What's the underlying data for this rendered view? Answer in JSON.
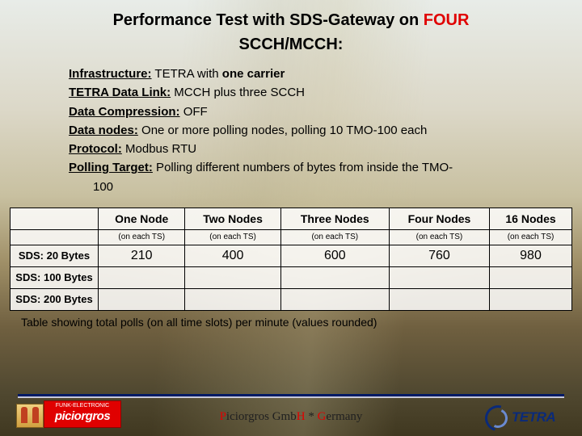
{
  "title": {
    "line1_prefix": "Performance Test with SDS-Gateway on ",
    "line1_highlight": "FOUR",
    "line2": "SCCH/MCCH:",
    "fontsize": 20,
    "color": "#000000",
    "highlight_color": "#e00000"
  },
  "bullets": [
    {
      "label": "Infrastructure:",
      "value": " TETRA with ",
      "emph": "one carrier",
      "tail": ""
    },
    {
      "label": "TETRA Data Link:",
      "value": " MCCH plus three SCCH"
    },
    {
      "label": "Data Compression:",
      "value": " OFF"
    },
    {
      "label": "Data nodes:",
      "value": " One or more polling nodes, polling 10 TMO-100 each"
    },
    {
      "label": "Protocol:",
      "value": " Modbus RTU"
    },
    {
      "label": "Polling Target:",
      "value": " Polling different numbers of bytes from inside the TMO-",
      "cont": "100"
    }
  ],
  "table": {
    "col_headers": [
      "One Node",
      "Two Nodes",
      "Three Nodes",
      "Four Nodes",
      "16 Nodes"
    ],
    "sub_header": "(on each TS)",
    "row_headers": [
      "SDS: 20 Bytes",
      "SDS: 100 Bytes",
      "SDS: 200 Bytes"
    ],
    "rows": [
      [
        "210",
        "400",
        "600",
        "760",
        "980"
      ],
      [
        "",
        "",
        "",
        "",
        ""
      ],
      [
        "",
        "",
        "",
        "",
        ""
      ]
    ],
    "caption": "Table showing total polls (on all time slots) per minute (values rounded)",
    "header_fontsize": 14,
    "sub_fontsize": 10,
    "cell_fontsize": 16,
    "rowh_fontsize": 13,
    "border_color": "#000000",
    "background_color": "rgba(255,255,255,0.85)"
  },
  "footer": {
    "text_start": "",
    "p_letter": "P",
    "mid1": "iciorgros Gmb",
    "h_letter": "H",
    "mid2": " * ",
    "g_letter": "G",
    "mid3": "ermany",
    "rule_color": "#001a66",
    "fontsize": 15
  },
  "logo_left": {
    "top_text": "FUNK-ELECTRONIC",
    "brand": "piciorgros",
    "bg_color": "#e00000",
    "text_color": "#ffffff"
  },
  "logo_right": {
    "text": "TETRA",
    "text_color": "#0a2a7a",
    "swoosh_outer": "#0a2a7a",
    "swoosh_inner": "#6a8ad0"
  },
  "background": {
    "gradient_stops": [
      "#e8ece8",
      "#dcd8c8",
      "#c8c0a0",
      "#a09068",
      "#706040",
      "#504830",
      "#403820"
    ]
  }
}
